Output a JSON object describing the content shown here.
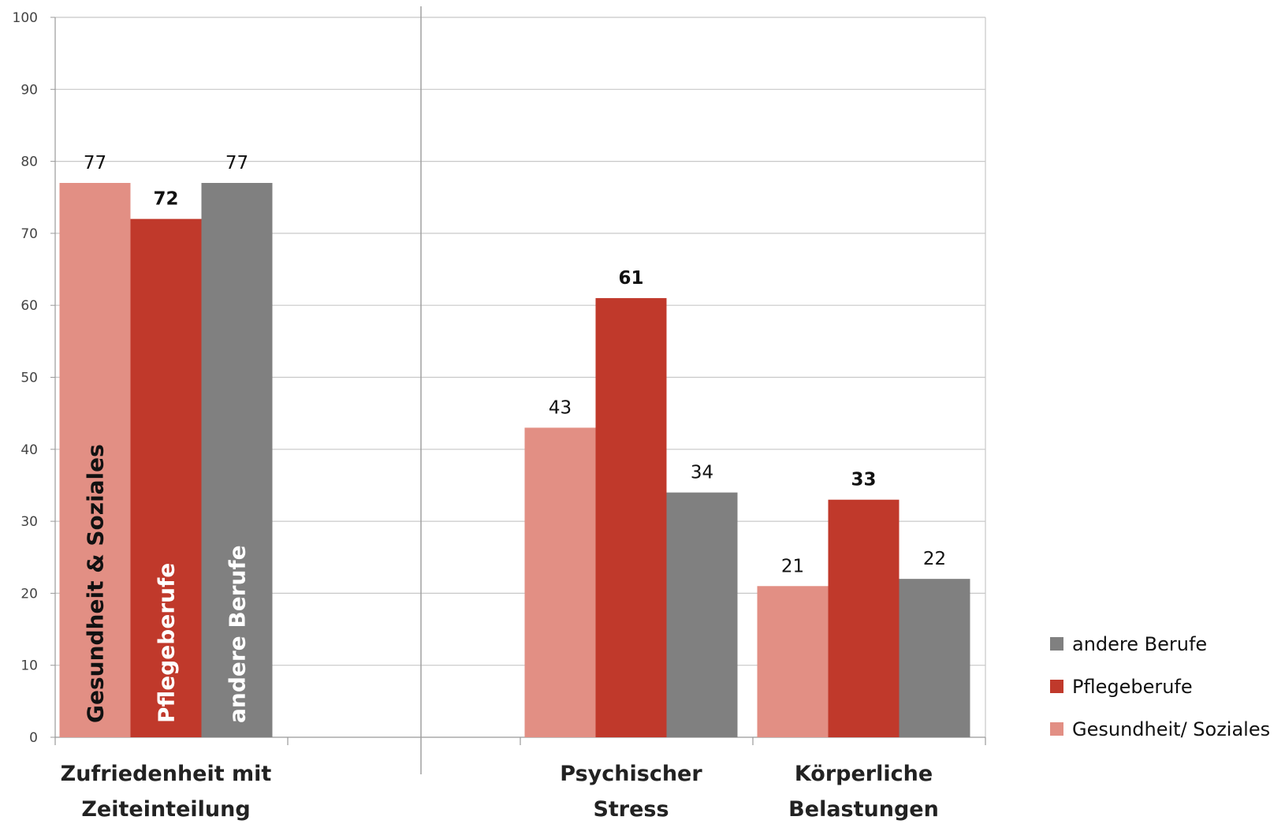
{
  "chart_data": {
    "type": "bar",
    "categories": [
      [
        "Zufriedenheit mit",
        "Zeiteinteilung"
      ],
      [],
      [
        "Psychischer",
        "Stress"
      ],
      [
        "Körperliche",
        "Belastungen"
      ]
    ],
    "series": [
      {
        "name": "Gesundheit/ Soziales",
        "color": "#e28f84",
        "values": [
          77,
          null,
          43,
          21
        ],
        "bar_label": "Gesundheit & Soziales",
        "bar_label_color": "#111111"
      },
      {
        "name": "Pflegeberufe",
        "color": "#c0392b",
        "values": [
          72,
          null,
          61,
          33
        ],
        "bar_label": "Pflegeberufe",
        "bar_label_color": "#ffffff"
      },
      {
        "name": "andere Berufe",
        "color": "#808080",
        "values": [
          77,
          null,
          34,
          22
        ],
        "bar_label": "andere Berufe",
        "bar_label_color": "#ffffff"
      }
    ],
    "data_labels": [
      [
        "77",
        "72",
        "77"
      ],
      [],
      [
        "43",
        "61",
        "34"
      ],
      [
        "21",
        "33",
        "22"
      ]
    ],
    "bold_series_labels": [
      "Pflegeberufe"
    ],
    "in_bar_labels_category": 0,
    "ylim": [
      0,
      100
    ],
    "yticks": [
      "0",
      "10",
      "20",
      "30",
      "40",
      "50",
      "60",
      "70",
      "80",
      "90",
      "100"
    ],
    "grid": true,
    "legend_placement": "right",
    "legend_order": [
      "andere Berufe",
      "Pflegeberufe",
      "Gesundheit/ Soziales"
    ],
    "title": "",
    "xlabel": "",
    "ylabel": ""
  }
}
